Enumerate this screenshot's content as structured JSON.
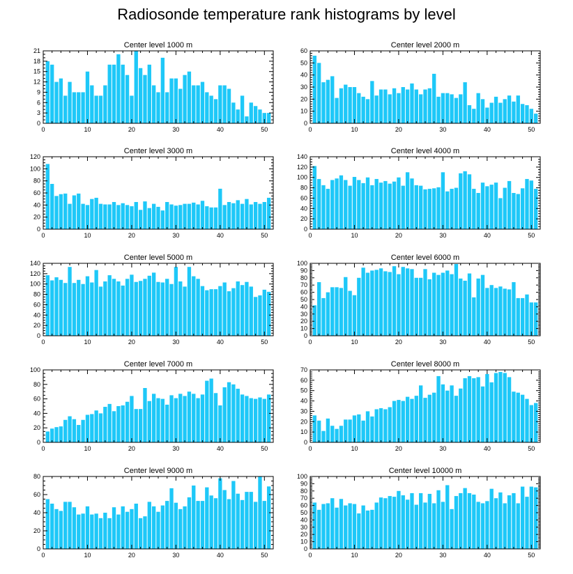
{
  "figure_title": "Radiosonde temperature rank histograms by level",
  "bar_color": "#1EC8F8",
  "chart_data": [
    {
      "type": "bar",
      "title": "Center level 1000 m",
      "xlim": [
        0,
        52
      ],
      "ylim": [
        0,
        21
      ],
      "xticks": [
        0,
        10,
        20,
        30,
        40,
        50
      ],
      "yticks": [
        0,
        3,
        6,
        9,
        12,
        15,
        18,
        21
      ],
      "x": [
        1,
        2,
        3,
        4,
        5,
        6,
        7,
        8,
        9,
        10,
        11,
        12,
        13,
        14,
        15,
        16,
        17,
        18,
        19,
        20,
        21,
        22,
        23,
        24,
        25,
        26,
        27,
        28,
        29,
        30,
        31,
        32,
        33,
        34,
        35,
        36,
        37,
        38,
        39,
        40,
        41,
        42,
        43,
        44,
        45,
        46,
        47,
        48,
        49,
        50,
        51
      ],
      "values": [
        18,
        17,
        12,
        13,
        8,
        12,
        9,
        9,
        9,
        15,
        11,
        8,
        8,
        11,
        17,
        17,
        20,
        17,
        14,
        8,
        21,
        16,
        14,
        17,
        11,
        9,
        19,
        9,
        13,
        13,
        10,
        14,
        15,
        11,
        11,
        12,
        9,
        8,
        7,
        11,
        11,
        10,
        6,
        4,
        8,
        2,
        6,
        5,
        4,
        3,
        3
      ]
    },
    {
      "type": "bar",
      "title": "Center level 2000 m",
      "xlim": [
        0,
        52
      ],
      "ylim": [
        0,
        60
      ],
      "xticks": [
        0,
        10,
        20,
        30,
        40,
        50
      ],
      "yticks": [
        0,
        10,
        20,
        30,
        40,
        50,
        60
      ],
      "x": [
        1,
        2,
        3,
        4,
        5,
        6,
        7,
        8,
        9,
        10,
        11,
        12,
        13,
        14,
        15,
        16,
        17,
        18,
        19,
        20,
        21,
        22,
        23,
        24,
        25,
        26,
        27,
        28,
        29,
        30,
        31,
        32,
        33,
        34,
        35,
        36,
        37,
        38,
        39,
        40,
        41,
        42,
        43,
        44,
        45,
        46,
        47,
        48,
        49,
        50,
        51
      ],
      "values": [
        56,
        50,
        34,
        36,
        39,
        21,
        29,
        32,
        30,
        30,
        25,
        22,
        20,
        35,
        23,
        28,
        28,
        24,
        29,
        25,
        30,
        28,
        33,
        28,
        24,
        28,
        29,
        41,
        22,
        25,
        25,
        24,
        21,
        24,
        34,
        15,
        12,
        25,
        20,
        13,
        17,
        22,
        17,
        20,
        23,
        18,
        23,
        16,
        15,
        12,
        8
      ]
    },
    {
      "type": "bar",
      "title": "Center level 3000 m",
      "xlim": [
        0,
        52
      ],
      "ylim": [
        0,
        120
      ],
      "xticks": [
        0,
        10,
        20,
        30,
        40,
        50
      ],
      "yticks": [
        0,
        20,
        40,
        60,
        80,
        100,
        120
      ],
      "x": [
        1,
        2,
        3,
        4,
        5,
        6,
        7,
        8,
        9,
        10,
        11,
        12,
        13,
        14,
        15,
        16,
        17,
        18,
        19,
        20,
        21,
        22,
        23,
        24,
        25,
        26,
        27,
        28,
        29,
        30,
        31,
        32,
        33,
        34,
        35,
        36,
        37,
        38,
        39,
        40,
        41,
        42,
        43,
        44,
        45,
        46,
        47,
        48,
        49,
        50,
        51
      ],
      "values": [
        108,
        75,
        55,
        58,
        59,
        42,
        56,
        59,
        42,
        40,
        50,
        52,
        42,
        41,
        41,
        45,
        40,
        43,
        40,
        38,
        45,
        32,
        46,
        35,
        42,
        37,
        31,
        45,
        41,
        39,
        40,
        42,
        42,
        44,
        41,
        47,
        38,
        36,
        36,
        67,
        40,
        45,
        43,
        48,
        42,
        50,
        41,
        45,
        42,
        45,
        52
      ]
    },
    {
      "type": "bar",
      "title": "Center level 4000 m",
      "xlim": [
        0,
        52
      ],
      "ylim": [
        0,
        140
      ],
      "xticks": [
        0,
        10,
        20,
        30,
        40,
        50
      ],
      "yticks": [
        0,
        20,
        40,
        60,
        80,
        100,
        120,
        140
      ],
      "x": [
        1,
        2,
        3,
        4,
        5,
        6,
        7,
        8,
        9,
        10,
        11,
        12,
        13,
        14,
        15,
        16,
        17,
        18,
        19,
        20,
        21,
        22,
        23,
        24,
        25,
        26,
        27,
        28,
        29,
        30,
        31,
        32,
        33,
        34,
        35,
        36,
        37,
        38,
        39,
        40,
        41,
        42,
        43,
        44,
        45,
        46,
        47,
        48,
        49,
        50,
        51
      ],
      "values": [
        122,
        97,
        85,
        78,
        95,
        98,
        104,
        95,
        84,
        101,
        95,
        89,
        100,
        85,
        97,
        90,
        93,
        88,
        92,
        100,
        84,
        110,
        98,
        85,
        84,
        77,
        78,
        79,
        81,
        110,
        73,
        78,
        80,
        108,
        112,
        106,
        78,
        70,
        90,
        83,
        86,
        90,
        60,
        80,
        93,
        70,
        68,
        79,
        97,
        94,
        78
      ]
    },
    {
      "type": "bar",
      "title": "Center level 5000 m",
      "xlim": [
        0,
        52
      ],
      "ylim": [
        0,
        140
      ],
      "xticks": [
        0,
        10,
        20,
        30,
        40,
        50
      ],
      "yticks": [
        0,
        20,
        40,
        60,
        80,
        100,
        120,
        140
      ],
      "x": [
        1,
        2,
        3,
        4,
        5,
        6,
        7,
        8,
        9,
        10,
        11,
        12,
        13,
        14,
        15,
        16,
        17,
        18,
        19,
        20,
        21,
        22,
        23,
        24,
        25,
        26,
        27,
        28,
        29,
        30,
        31,
        32,
        33,
        34,
        35,
        36,
        37,
        38,
        39,
        40,
        41,
        42,
        43,
        44,
        45,
        46,
        47,
        48,
        49,
        50,
        51
      ],
      "values": [
        117,
        107,
        113,
        108,
        102,
        133,
        102,
        108,
        100,
        115,
        103,
        127,
        95,
        105,
        117,
        110,
        105,
        97,
        110,
        118,
        104,
        106,
        110,
        116,
        122,
        104,
        103,
        110,
        100,
        133,
        105,
        95,
        133,
        115,
        110,
        96,
        88,
        90,
        90,
        96,
        103,
        86,
        92,
        105,
        98,
        104,
        95,
        75,
        78,
        89,
        85
      ]
    },
    {
      "type": "bar",
      "title": "Center level 6000 m",
      "xlim": [
        0,
        52
      ],
      "ylim": [
        0,
        100
      ],
      "xticks": [
        0,
        10,
        20,
        30,
        40,
        50
      ],
      "yticks": [
        0,
        10,
        20,
        30,
        40,
        50,
        60,
        70,
        80,
        90,
        100
      ],
      "x": [
        1,
        2,
        3,
        4,
        5,
        6,
        7,
        8,
        9,
        10,
        11,
        12,
        13,
        14,
        15,
        16,
        17,
        18,
        19,
        20,
        21,
        22,
        23,
        24,
        25,
        26,
        27,
        28,
        29,
        30,
        31,
        32,
        33,
        34,
        35,
        36,
        37,
        38,
        39,
        40,
        41,
        42,
        43,
        44,
        45,
        46,
        47,
        48,
        49,
        50,
        51
      ],
      "values": [
        42,
        74,
        52,
        60,
        67,
        67,
        66,
        81,
        62,
        56,
        80,
        94,
        87,
        90,
        91,
        93,
        89,
        88,
        96,
        85,
        95,
        93,
        92,
        80,
        80,
        92,
        78,
        87,
        84,
        87,
        90,
        85,
        99,
        79,
        76,
        86,
        53,
        79,
        84,
        66,
        70,
        66,
        68,
        65,
        64,
        74,
        52,
        52,
        57,
        46,
        46
      ]
    },
    {
      "type": "bar",
      "title": "Center level 7000 m",
      "xlim": [
        0,
        52
      ],
      "ylim": [
        0,
        100
      ],
      "xticks": [
        0,
        10,
        20,
        30,
        40,
        50
      ],
      "yticks": [
        0,
        20,
        40,
        60,
        80,
        100
      ],
      "x": [
        1,
        2,
        3,
        4,
        5,
        6,
        7,
        8,
        9,
        10,
        11,
        12,
        13,
        14,
        15,
        16,
        17,
        18,
        19,
        20,
        21,
        22,
        23,
        24,
        25,
        26,
        27,
        28,
        29,
        30,
        31,
        32,
        33,
        34,
        35,
        36,
        37,
        38,
        39,
        40,
        41,
        42,
        43,
        44,
        45,
        46,
        47,
        48,
        49,
        50,
        51
      ],
      "values": [
        15,
        19,
        21,
        22,
        31,
        36,
        32,
        24,
        31,
        38,
        39,
        44,
        40,
        49,
        53,
        43,
        50,
        51,
        56,
        64,
        46,
        46,
        75,
        57,
        67,
        61,
        60,
        52,
        65,
        61,
        67,
        64,
        70,
        67,
        61,
        66,
        85,
        88,
        68,
        51,
        76,
        83,
        80,
        74,
        66,
        64,
        61,
        60,
        62,
        60,
        66
      ]
    },
    {
      "type": "bar",
      "title": "Center level 8000 m",
      "xlim": [
        0,
        52
      ],
      "ylim": [
        0,
        70
      ],
      "xticks": [
        0,
        10,
        20,
        30,
        40,
        50
      ],
      "yticks": [
        0,
        10,
        20,
        30,
        40,
        50,
        60,
        70
      ],
      "x": [
        1,
        2,
        3,
        4,
        5,
        6,
        7,
        8,
        9,
        10,
        11,
        12,
        13,
        14,
        15,
        16,
        17,
        18,
        19,
        20,
        21,
        22,
        23,
        24,
        25,
        26,
        27,
        28,
        29,
        30,
        31,
        32,
        33,
        34,
        35,
        36,
        37,
        38,
        39,
        40,
        41,
        42,
        43,
        44,
        45,
        46,
        47,
        48,
        49,
        50,
        51
      ],
      "values": [
        26,
        21,
        11,
        23,
        16,
        13,
        16,
        22,
        22,
        26,
        27,
        21,
        30,
        25,
        32,
        33,
        32,
        34,
        40,
        41,
        40,
        44,
        42,
        45,
        55,
        43,
        46,
        48,
        64,
        56,
        50,
        55,
        45,
        52,
        62,
        64,
        62,
        63,
        54,
        66,
        58,
        67,
        68,
        67,
        63,
        49,
        48,
        46,
        42,
        36,
        38
      ]
    },
    {
      "type": "bar",
      "title": "Center level 9000 m",
      "xlim": [
        0,
        52
      ],
      "ylim": [
        0,
        80
      ],
      "xticks": [
        0,
        10,
        20,
        30,
        40,
        50
      ],
      "yticks": [
        0,
        20,
        40,
        60,
        80
      ],
      "x": [
        1,
        2,
        3,
        4,
        5,
        6,
        7,
        8,
        9,
        10,
        11,
        12,
        13,
        14,
        15,
        16,
        17,
        18,
        19,
        20,
        21,
        22,
        23,
        24,
        25,
        26,
        27,
        28,
        29,
        30,
        31,
        32,
        33,
        34,
        35,
        36,
        37,
        38,
        39,
        40,
        41,
        42,
        43,
        44,
        45,
        46,
        47,
        48,
        49,
        50,
        51
      ],
      "values": [
        55,
        50,
        44,
        42,
        52,
        52,
        46,
        38,
        39,
        47,
        38,
        39,
        34,
        40,
        34,
        46,
        38,
        47,
        41,
        44,
        50,
        34,
        36,
        52,
        47,
        41,
        48,
        53,
        67,
        51,
        44,
        47,
        57,
        70,
        53,
        53,
        68,
        59,
        56,
        78,
        65,
        55,
        75,
        61,
        54,
        63,
        63,
        52,
        80,
        53,
        69
      ]
    },
    {
      "type": "bar",
      "title": "Center level 10000 m",
      "xlim": [
        0,
        52
      ],
      "ylim": [
        0,
        100
      ],
      "xticks": [
        0,
        10,
        20,
        30,
        40,
        50
      ],
      "yticks": [
        0,
        10,
        20,
        30,
        40,
        50,
        60,
        70,
        80,
        90,
        100
      ],
      "x": [
        1,
        2,
        3,
        4,
        5,
        6,
        7,
        8,
        9,
        10,
        11,
        12,
        13,
        14,
        15,
        16,
        17,
        18,
        19,
        20,
        21,
        22,
        23,
        24,
        25,
        26,
        27,
        28,
        29,
        30,
        31,
        32,
        33,
        34,
        35,
        36,
        37,
        38,
        39,
        40,
        41,
        42,
        43,
        44,
        45,
        46,
        47,
        48,
        49,
        50,
        51
      ],
      "values": [
        64,
        54,
        62,
        63,
        70,
        57,
        69,
        60,
        63,
        62,
        49,
        60,
        53,
        54,
        64,
        71,
        70,
        73,
        72,
        80,
        74,
        68,
        77,
        61,
        77,
        64,
        76,
        63,
        81,
        65,
        88,
        55,
        73,
        77,
        84,
        77,
        75,
        65,
        63,
        66,
        83,
        70,
        78,
        63,
        74,
        77,
        63,
        86,
        72,
        86,
        85
      ]
    }
  ]
}
